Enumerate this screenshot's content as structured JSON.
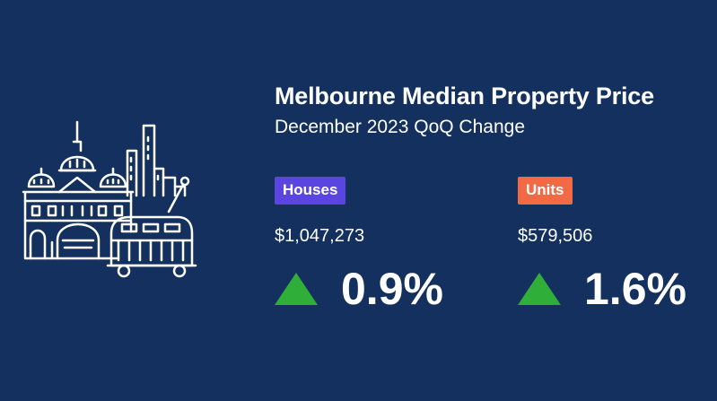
{
  "title": "Melbourne Median Property Price",
  "subtitle": "December 2023 QoQ Change",
  "colors": {
    "background": "#14305e",
    "houses_badge": "#5a45e0",
    "units_badge": "#f26a45",
    "up_arrow": "#2fae3a"
  },
  "illustration_icon": "melbourne-skyline-tram-icon",
  "houses": {
    "label": "Houses",
    "price": "$1,047,273",
    "change": "0.9%",
    "direction_icon": "up-triangle-icon"
  },
  "units": {
    "label": "Units",
    "price": "$579,506",
    "change": "1.6%",
    "direction_icon": "up-triangle-icon"
  }
}
